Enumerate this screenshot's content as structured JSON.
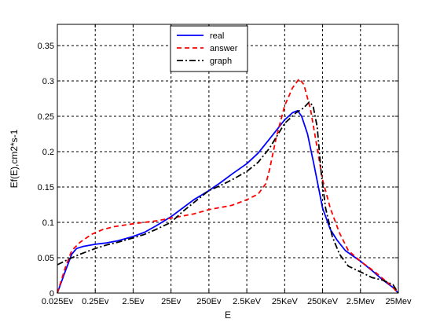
{
  "chart_data": {
    "type": "line",
    "xlabel": "E",
    "ylabel": "Ef(E),cm^2*s^-1",
    "ylabel_display": "Ef(E),cm2*s-1",
    "x_scale": "log",
    "x_ticks": [
      {
        "value": 0.025,
        "label": "0.025Ev"
      },
      {
        "value": 0.25,
        "label": "0.25Ev"
      },
      {
        "value": 2.5,
        "label": "2.5Ev"
      },
      {
        "value": 25,
        "label": "25Ev"
      },
      {
        "value": 250,
        "label": "250Ev"
      },
      {
        "value": 2500,
        "label": "2.5KeV"
      },
      {
        "value": 25000,
        "label": "25KeV"
      },
      {
        "value": 250000,
        "label": "250KeV"
      },
      {
        "value": 2500000,
        "label": "2.5Mev"
      },
      {
        "value": 25000000,
        "label": "25Mev"
      }
    ],
    "xlim": [
      0.025,
      25000000
    ],
    "ylim": [
      0,
      0.38
    ],
    "y_ticks": [
      {
        "value": 0,
        "label": "0"
      },
      {
        "value": 0.05,
        "label": "0.05"
      },
      {
        "value": 0.1,
        "label": "0.1"
      },
      {
        "value": 0.15,
        "label": "0.15"
      },
      {
        "value": 0.2,
        "label": "0.2"
      },
      {
        "value": 0.25,
        "label": "0.25"
      },
      {
        "value": 0.3,
        "label": "0.3"
      },
      {
        "value": 0.35,
        "label": "0.35"
      }
    ],
    "grid": true,
    "legend_position": "top-center",
    "series": [
      {
        "name": "real",
        "color": "#0000ff",
        "style": "solid",
        "points": [
          [
            0.025,
            0.0
          ],
          [
            0.04,
            0.03
          ],
          [
            0.06,
            0.055
          ],
          [
            0.08,
            0.063
          ],
          [
            0.12,
            0.066
          ],
          [
            0.25,
            0.069
          ],
          [
            0.5,
            0.071
          ],
          [
            1,
            0.074
          ],
          [
            2.5,
            0.08
          ],
          [
            5,
            0.086
          ],
          [
            10,
            0.095
          ],
          [
            25,
            0.108
          ],
          [
            50,
            0.12
          ],
          [
            100,
            0.132
          ],
          [
            250,
            0.145
          ],
          [
            500,
            0.156
          ],
          [
            1000,
            0.168
          ],
          [
            2500,
            0.183
          ],
          [
            5000,
            0.198
          ],
          [
            10000,
            0.218
          ],
          [
            25000,
            0.245
          ],
          [
            40000,
            0.255
          ],
          [
            55000,
            0.258
          ],
          [
            70000,
            0.25
          ],
          [
            100000,
            0.225
          ],
          [
            150000,
            0.18
          ],
          [
            250000,
            0.12
          ],
          [
            400000,
            0.09
          ],
          [
            600000,
            0.075
          ],
          [
            1000000,
            0.06
          ],
          [
            2500000,
            0.045
          ],
          [
            5000000,
            0.032
          ],
          [
            10000000,
            0.018
          ],
          [
            18000000,
            0.008
          ],
          [
            25000000,
            0.0
          ]
        ]
      },
      {
        "name": "answer",
        "color": "#ff0000",
        "style": "dashed",
        "points": [
          [
            0.025,
            0.0
          ],
          [
            0.04,
            0.035
          ],
          [
            0.06,
            0.06
          ],
          [
            0.1,
            0.072
          ],
          [
            0.2,
            0.083
          ],
          [
            0.4,
            0.09
          ],
          [
            0.8,
            0.094
          ],
          [
            2.5,
            0.098
          ],
          [
            10,
            0.102
          ],
          [
            25,
            0.106
          ],
          [
            100,
            0.112
          ],
          [
            250,
            0.118
          ],
          [
            1000,
            0.124
          ],
          [
            2500,
            0.132
          ],
          [
            5000,
            0.14
          ],
          [
            8000,
            0.155
          ],
          [
            10000,
            0.175
          ],
          [
            15000,
            0.22
          ],
          [
            25000,
            0.265
          ],
          [
            40000,
            0.29
          ],
          [
            60000,
            0.303
          ],
          [
            80000,
            0.295
          ],
          [
            120000,
            0.26
          ],
          [
            180000,
            0.205
          ],
          [
            250000,
            0.16
          ],
          [
            400000,
            0.12
          ],
          [
            700000,
            0.085
          ],
          [
            1200000,
            0.06
          ],
          [
            2500000,
            0.045
          ],
          [
            6000000,
            0.03
          ],
          [
            15000000,
            0.012
          ],
          [
            25000000,
            0.0
          ]
        ]
      },
      {
        "name": "graph",
        "color": "#000000",
        "style": "dashdot",
        "points": [
          [
            0.025,
            0.04
          ],
          [
            0.05,
            0.048
          ],
          [
            0.1,
            0.055
          ],
          [
            0.25,
            0.063
          ],
          [
            0.5,
            0.068
          ],
          [
            1,
            0.072
          ],
          [
            2.5,
            0.078
          ],
          [
            5,
            0.083
          ],
          [
            10,
            0.09
          ],
          [
            25,
            0.1
          ],
          [
            50,
            0.115
          ],
          [
            100,
            0.128
          ],
          [
            250,
            0.145
          ],
          [
            500,
            0.152
          ],
          [
            1000,
            0.16
          ],
          [
            2500,
            0.172
          ],
          [
            5000,
            0.185
          ],
          [
            10000,
            0.205
          ],
          [
            25000,
            0.24
          ],
          [
            50000,
            0.255
          ],
          [
            80000,
            0.262
          ],
          [
            110000,
            0.27
          ],
          [
            140000,
            0.265
          ],
          [
            180000,
            0.235
          ],
          [
            230000,
            0.17
          ],
          [
            300000,
            0.12
          ],
          [
            450000,
            0.08
          ],
          [
            700000,
            0.055
          ],
          [
            1200000,
            0.038
          ],
          [
            2500000,
            0.03
          ],
          [
            5000000,
            0.022
          ],
          [
            10000000,
            0.018
          ],
          [
            18000000,
            0.012
          ],
          [
            25000000,
            0.0
          ]
        ]
      }
    ]
  }
}
